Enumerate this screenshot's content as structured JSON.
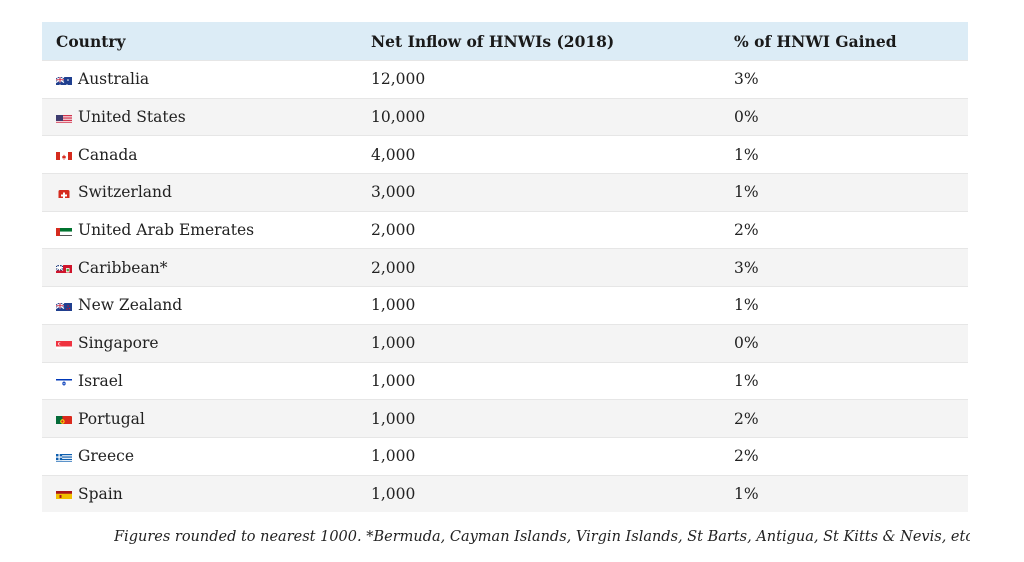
{
  "table": {
    "headers": [
      "Country",
      "Net Inflow of HNWIs (2018)",
      "% of HNWI Gained"
    ],
    "rows": [
      {
        "country": "Australia",
        "inflow": "12,000",
        "pct": "3%",
        "flag": "australia-flag-icon"
      },
      {
        "country": "United States",
        "inflow": "10,000",
        "pct": "0%",
        "flag": "united-states-flag-icon"
      },
      {
        "country": "Canada",
        "inflow": "4,000",
        "pct": "1%",
        "flag": "canada-flag-icon"
      },
      {
        "country": "Switzerland",
        "inflow": "3,000",
        "pct": "1%",
        "flag": "switzerland-flag-icon"
      },
      {
        "country": "United Arab Emerates",
        "inflow": "2,000",
        "pct": "2%",
        "flag": "uae-flag-icon"
      },
      {
        "country": "Caribbean*",
        "inflow": "2,000",
        "pct": "3%",
        "flag": "caribbean-flag-icon"
      },
      {
        "country": "New Zealand",
        "inflow": "1,000",
        "pct": "1%",
        "flag": "new-zealand-flag-icon"
      },
      {
        "country": "Singapore",
        "inflow": "1,000",
        "pct": "0%",
        "flag": "singapore-flag-icon"
      },
      {
        "country": "Israel",
        "inflow": "1,000",
        "pct": "1%",
        "flag": "israel-flag-icon"
      },
      {
        "country": "Portugal",
        "inflow": "1,000",
        "pct": "2%",
        "flag": "portugal-flag-icon"
      },
      {
        "country": "Greece",
        "inflow": "1,000",
        "pct": "2%",
        "flag": "greece-flag-icon"
      },
      {
        "country": "Spain",
        "inflow": "1,000",
        "pct": "1%",
        "flag": "spain-flag-icon"
      }
    ]
  },
  "footnote": "Figures rounded to nearest 1000. *Bermuda, Cayman Islands, Virgin Islands, St Barts, Antigua, St Kitts & Nevis, etc",
  "colors": {
    "header_bg": "#dcecf6",
    "alt_row_bg": "#f4f4f4"
  }
}
